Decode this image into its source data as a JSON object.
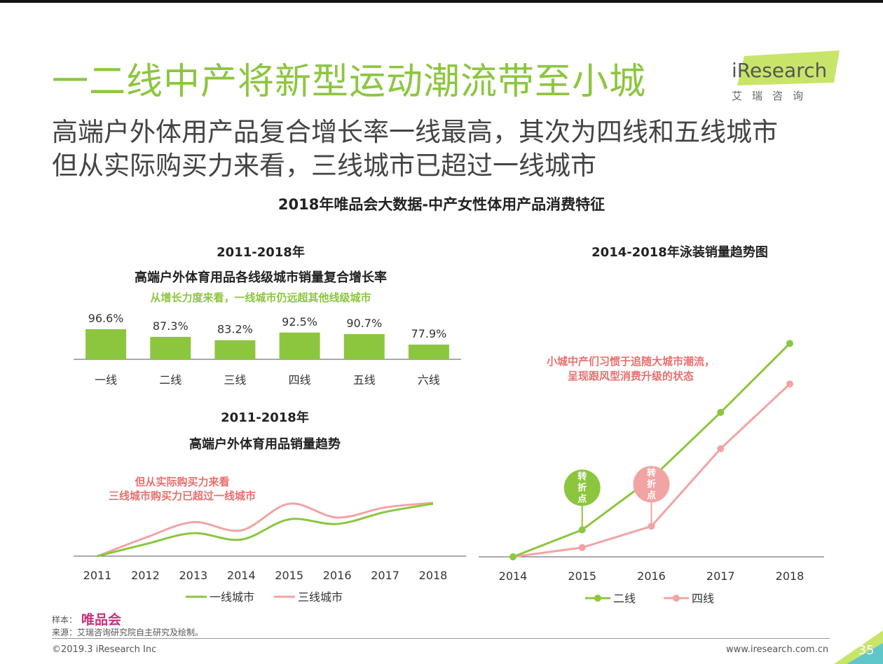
{
  "header": {
    "title": "一二线中产将新型运动潮流带至小城",
    "subtitle_line1": "高端户外体用产品复合增长率一线最高，其次为四线和五线城市",
    "subtitle_line2": "但从实际购买力来看，三线城市已超过一线城市",
    "logo_text": "iResearch",
    "logo_cn": "艾瑞咨询"
  },
  "main_title": "2018年唯品会大数据-中产女性体用产品消费特征",
  "colors": {
    "green": "#8cc63f",
    "pink": "#f2a3a3",
    "pink_text": "#e8706f",
    "axis": "#555555"
  },
  "chart_data": [
    {
      "type": "bar",
      "title": "2011-2018年",
      "subtitle": "高端户外体育用品各线级城市销量复合增长率",
      "annotation": "从增长力度来看，一线城市仍远超其他线级城市",
      "categories": [
        "一线",
        "二线",
        "三线",
        "四线",
        "五线",
        "六线"
      ],
      "values": [
        96.6,
        87.3,
        83.2,
        92.5,
        90.7,
        77.9
      ],
      "value_labels": [
        "96.6%",
        "87.3%",
        "83.2%",
        "92.5%",
        "90.7%",
        "77.9%"
      ],
      "color": "#8cc63f"
    },
    {
      "type": "line",
      "title": "2011-2018年",
      "subtitle": "高端户外体育用品销量趋势",
      "annotation_line1": "但从实际购买力来看",
      "annotation_line2": "三线城市购买力已超过一线城市",
      "x": [
        "2011",
        "2012",
        "2013",
        "2014",
        "2015",
        "2016",
        "2017",
        "2018"
      ],
      "series": [
        {
          "name": "一线城市",
          "color": "#8cc63f",
          "values": [
            0,
            13,
            25,
            18,
            40,
            35,
            48,
            57
          ]
        },
        {
          "name": "三线城市",
          "color": "#f2a3a3",
          "values": [
            0,
            20,
            37,
            28,
            57,
            42,
            53,
            58
          ]
        }
      ],
      "ylim": [
        0,
        80
      ]
    },
    {
      "type": "line",
      "title": "2014-2018年泳装销量趋势图",
      "annotation_line1": "小城中产们习惯于追随大城市潮流，",
      "annotation_line2": "呈现跟风型消费升级的状态",
      "x": [
        "2014",
        "2015",
        "2016",
        "2017",
        "2018"
      ],
      "series": [
        {
          "name": "二线",
          "color": "#8cc63f",
          "values": [
            0,
            38,
            110,
            203,
            300
          ]
        },
        {
          "name": "四线",
          "color": "#f2a3a3",
          "values": [
            0,
            13,
            43,
            152,
            243
          ]
        }
      ],
      "callouts": [
        {
          "label": "转折点",
          "series": "二线",
          "x": "2015",
          "color": "#8cc63f"
        },
        {
          "label": "转折点",
          "series": "四线",
          "x": "2016",
          "color": "#f2a3a3"
        }
      ],
      "ylim": [
        0,
        320
      ]
    }
  ],
  "footer": {
    "sample_label": "样本：",
    "sample_value": "唯品会",
    "source": "来源：艾瑞咨询研究院自主研究及绘制。",
    "copyright": "©2019.3 iResearch Inc",
    "website": "www.iresearch.com.cn",
    "page_number": "35"
  }
}
